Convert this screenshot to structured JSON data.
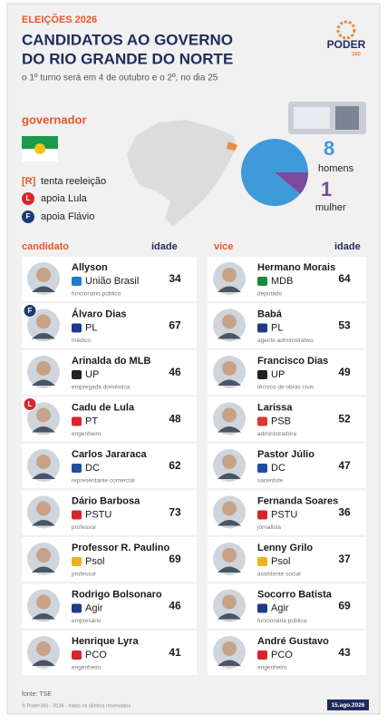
{
  "header": {
    "kicker": "ELEIÇÕES 2026",
    "title_lines": [
      "CANDIDATOS AO GOVERNO",
      "DO RIO GRANDE DO NORTE"
    ],
    "subtitle": "o 1º turno será em 4 de outubro e o 2º, no dia 25",
    "logo": "PODER",
    "logo_sub": "360"
  },
  "section": "governador",
  "legend": [
    {
      "mark": "[R]",
      "label": "tenta reeleição"
    },
    {
      "mark": "L",
      "label": "apoia Lula",
      "color": "#d7262b"
    },
    {
      "mark": "F",
      "label": "apoia Flávio",
      "color": "#1f3a7a"
    }
  ],
  "chart_data": {
    "type": "pie",
    "categories": [
      "homens",
      "mulher"
    ],
    "values": [
      8,
      1
    ],
    "colors": [
      "#3e9ad8",
      "#7a4a9c"
    ]
  },
  "table": {
    "headers": [
      "candidato",
      "idade",
      "vice",
      "idade"
    ],
    "rows": [
      {
        "candidate": {
          "name": "Allyson",
          "party": "União Brasil",
          "party_color": "#1d7ed0",
          "job": "funcionário público",
          "age": 34
        },
        "vice": {
          "name": "Hermano Morais",
          "party": "MDB",
          "party_color": "#1a8a3a",
          "job": "deputado",
          "age": 64
        }
      },
      {
        "candidate": {
          "name": "Álvaro Dias",
          "party": "PL",
          "party_color": "#1f3a8a",
          "job": "médico",
          "age": 67,
          "badge": "F",
          "badge_color": "#1f3a7a"
        },
        "vice": {
          "name": "Babá",
          "party": "PL",
          "party_color": "#1f3a8a",
          "job": "agente administrativo",
          "age": 53
        }
      },
      {
        "candidate": {
          "name": "Arinalda do MLB",
          "party": "UP",
          "party_color": "#222222",
          "job": "empregada doméstica",
          "age": 46
        },
        "vice": {
          "name": "Francisco Dias",
          "party": "UP",
          "party_color": "#222222",
          "job": "técnico de obras civis",
          "age": 49
        }
      },
      {
        "candidate": {
          "name": "Cadu de Lula",
          "party": "PT",
          "party_color": "#d7262b",
          "job": "engenheiro",
          "age": 48,
          "badge": "L",
          "badge_color": "#d7262b"
        },
        "vice": {
          "name": "Larissa",
          "party": "PSB",
          "party_color": "#e0352f",
          "job": "administradora",
          "age": 52
        }
      },
      {
        "candidate": {
          "name": "Carlos Jararaca",
          "party": "DC",
          "party_color": "#1f4fa0",
          "job": "representante comercial",
          "age": 62
        },
        "vice": {
          "name": "Pastor Júlio",
          "party": "DC",
          "party_color": "#1f4fa0",
          "job": "sacerdote",
          "age": 47
        }
      },
      {
        "candidate": {
          "name": "Dário Barbosa",
          "party": "PSTU",
          "party_color": "#d7262b",
          "job": "professor",
          "age": 73
        },
        "vice": {
          "name": "Fernanda Soares",
          "party": "PSTU",
          "party_color": "#d7262b",
          "job": "jornalista",
          "age": 36
        }
      },
      {
        "candidate": {
          "name": "Professor R. Paulino",
          "party": "Psol",
          "party_color": "#f2b01e",
          "job": "professor",
          "age": 69
        },
        "vice": {
          "name": "Lenny Grilo",
          "party": "Psol",
          "party_color": "#f2b01e",
          "job": "assistente social",
          "age": 37
        }
      },
      {
        "candidate": {
          "name": "Rodrigo Bolsonaro",
          "party": "Agir",
          "party_color": "#1f3a8a",
          "job": "empresário",
          "age": 46
        },
        "vice": {
          "name": "Socorro Batista",
          "party": "Agir",
          "party_color": "#1f3a8a",
          "job": "funcionária pública",
          "age": 69
        }
      },
      {
        "candidate": {
          "name": "Henrique Lyra",
          "party": "PCO",
          "party_color": "#d7262b",
          "job": "engenheiro",
          "age": 41
        },
        "vice": {
          "name": "André Gustavo",
          "party": "PCO",
          "party_color": "#d7262b",
          "job": "engenheiro",
          "age": 43
        }
      }
    ]
  },
  "footer": {
    "source": "fonte: TSE",
    "copyright": "© Poder360 - 2026 - todos os direitos reservados",
    "date": "15.ago.2026"
  }
}
